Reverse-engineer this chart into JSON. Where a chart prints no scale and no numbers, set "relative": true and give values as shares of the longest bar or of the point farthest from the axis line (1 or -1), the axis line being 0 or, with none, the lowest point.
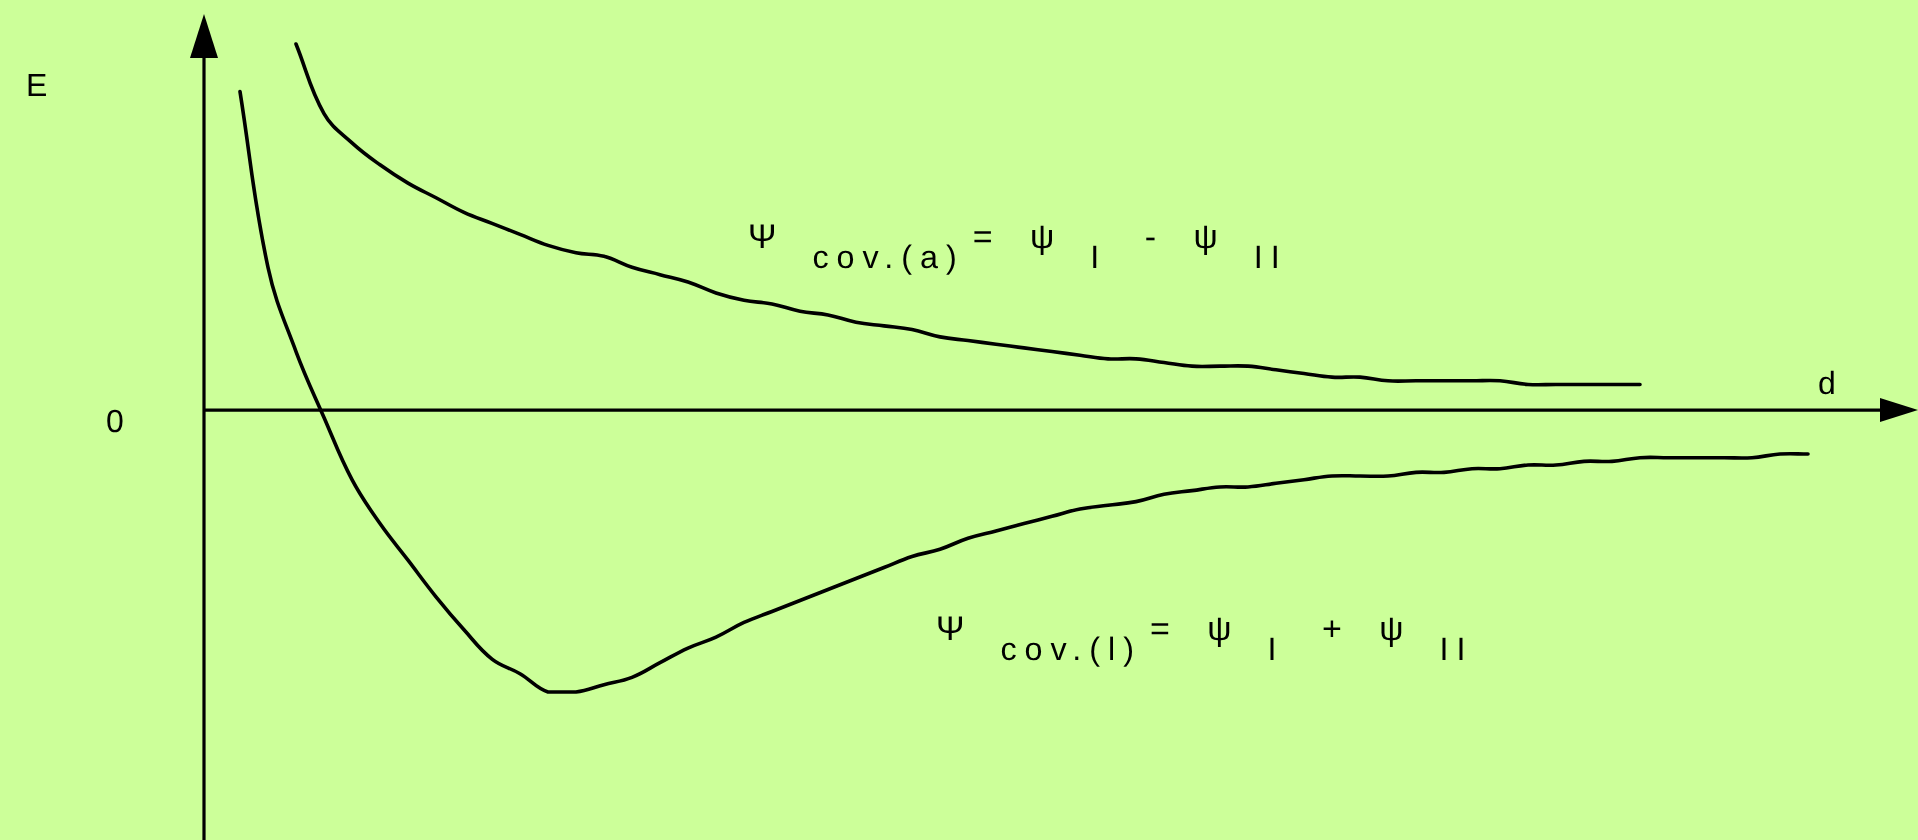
{
  "chart_data": {
    "type": "line",
    "relative": true,
    "xlabel": "d",
    "marker": "none",
    "categories": [
      null,
      null,
      null,
      null,
      null,
      null,
      null,
      null,
      null,
      null,
      null,
      null,
      null,
      null,
      null,
      null,
      null,
      null,
      null,
      null,
      null,
      null,
      null,
      null,
      null,
      null,
      null,
      null,
      null,
      null,
      null,
      null,
      null,
      null,
      null,
      null,
      null,
      null,
      null,
      null,
      null,
      null,
      null,
      null,
      null,
      null,
      null,
      null,
      null,
      null,
      null,
      null,
      null,
      null,
      null,
      null,
      null
    ],
    "series": [
      {
        "name": "Ψ$_{cov.(a)}$= ψ$_{I}$ - ψ$_{II}$",
        "color": "#000000",
        "values": [
          null,
          null,
          1,
          0.81,
          0.73,
          0.67,
          0.62,
          0.58,
          0.54,
          0.51,
          0.48,
          0.45,
          0.43,
          0.42,
          0.39,
          0.37,
          0.35,
          0.32,
          0.3,
          0.29,
          0.27,
          0.26,
          0.24,
          0.23,
          0.22,
          0.2,
          0.19,
          0.18,
          0.17,
          0.16,
          0.15,
          0.14,
          0.14,
          0.13,
          0.12,
          0.12,
          0.12,
          0.11,
          0.1,
          0.09,
          0.09,
          0.08,
          0.08,
          0.08,
          0.08,
          0.08,
          0.07,
          0.07,
          0.07,
          0.07,
          0.07,
          null,
          null,
          null,
          null,
          null,
          null
        ]
      },
      {
        "name": "Ψ$_{cov.(l)}$= ψ$_{I}$ + ψ$_{II}$",
        "color": "#000000",
        "values": [
          0.87,
          0.39,
          0.16,
          -0.02,
          -0.19,
          -0.31,
          -0.41,
          -0.51,
          -0.6,
          -0.68,
          -0.72,
          -0.77,
          -0.77,
          -0.75,
          -0.73,
          -0.69,
          -0.65,
          -0.62,
          -0.58,
          -0.55,
          -0.52,
          -0.49,
          -0.46,
          -0.43,
          -0.4,
          -0.38,
          -0.35,
          -0.33,
          -0.31,
          -0.29,
          -0.27,
          -0.26,
          -0.25,
          -0.23,
          -0.22,
          -0.21,
          -0.21,
          -0.2,
          -0.19,
          -0.18,
          -0.18,
          -0.18,
          -0.17,
          -0.17,
          -0.16,
          -0.16,
          -0.15,
          -0.15,
          -0.14,
          -0.14,
          -0.13,
          -0.13,
          -0.13,
          -0.13,
          -0.13,
          -0.12,
          -0.12
        ]
      }
    ],
    "annotations": [
      "E",
      "0"
    ]
  }
}
